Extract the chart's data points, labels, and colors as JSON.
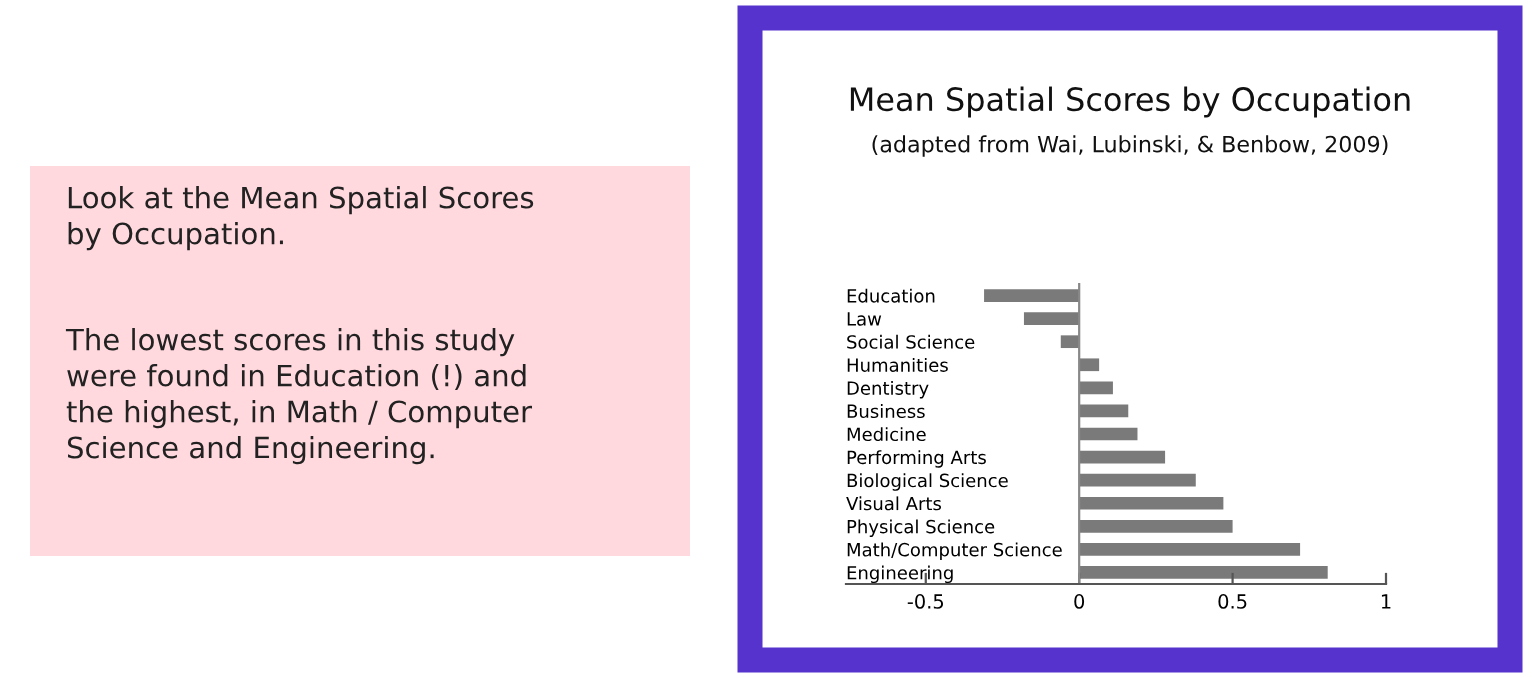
{
  "chart_data": {
    "type": "bar",
    "orientation": "horizontal",
    "title": "Mean Spatial Scores by Occupation",
    "subtitle": "(adapted from Wai, Lubinski, & Benbow, 2009)",
    "categories": [
      "Education",
      "Law",
      "Social Science",
      "Humanities",
      "Dentistry",
      "Business",
      "Medicine",
      "Performing Arts",
      "Biological Science",
      "Visual Arts",
      "Physical Science",
      "Math/Computer Science",
      "Engineering"
    ],
    "values": [
      -0.31,
      -0.18,
      -0.06,
      0.065,
      0.11,
      0.16,
      0.19,
      0.28,
      0.38,
      0.47,
      0.5,
      0.72,
      0.81
    ],
    "color": "#7a7a7a",
    "xlim": [
      -0.76,
      1.0
    ],
    "xticks": [
      -0.5,
      0,
      0.5,
      1
    ],
    "grid": false,
    "legend": false,
    "annotations": [
      "Look at the Mean Spatial Scores\nby Occupation.",
      "The lowest scores in this study\nwere found in Education (!) and\nthe highest, in Math / Computer\nScience and Engineering."
    ]
  }
}
